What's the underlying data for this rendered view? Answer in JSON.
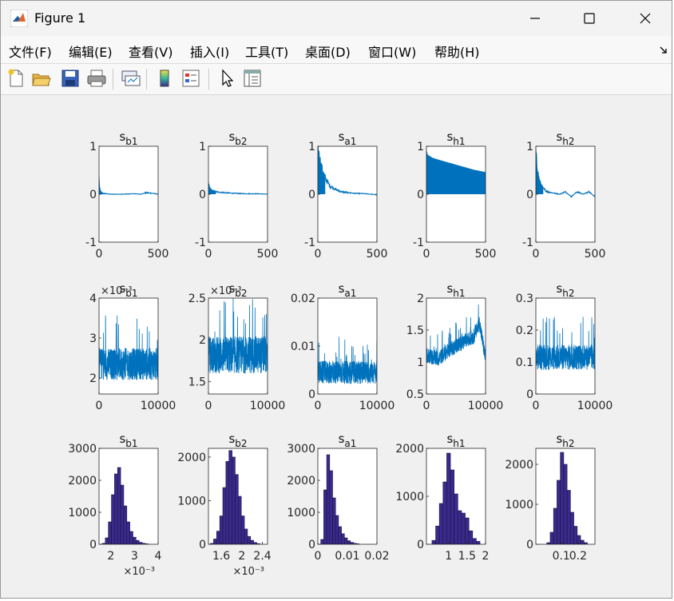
{
  "window": {
    "title": "Figure 1"
  },
  "menu": [
    "文件(F)",
    "编辑(E)",
    "查看(V)",
    "插入(I)",
    "工具(T)",
    "桌面(D)",
    "窗口(W)",
    "帮助(H)"
  ],
  "toolbar": [
    "new-figure",
    "open-file",
    "save",
    "print",
    "link-data",
    "colorbar",
    "legend",
    "pointer",
    "property-inspector"
  ],
  "colors": {
    "trace": "#0072bd",
    "hist_face": "#3a2a8c",
    "hist_edge": "#1a1240"
  },
  "chart_data": [
    {
      "type": "line",
      "title": "s",
      "subscript": "b1",
      "xlim": [
        0,
        500
      ],
      "ylim": [
        -1,
        1
      ],
      "xticks": [
        "0",
        "500"
      ],
      "yticks": [
        "-1",
        "0",
        "1"
      ],
      "shape": "decay",
      "x": [
        0,
        5,
        15,
        30,
        60,
        100,
        200,
        300,
        350,
        400,
        450,
        500
      ],
      "y": [
        0.35,
        0.12,
        0.05,
        0.02,
        0.01,
        0.0,
        0.0,
        0.01,
        0.0,
        0.03,
        0.02,
        0.0
      ]
    },
    {
      "type": "line",
      "title": "s",
      "subscript": "b2",
      "xlim": [
        0,
        500
      ],
      "ylim": [
        -1,
        1
      ],
      "xticks": [
        "0",
        "500"
      ],
      "yticks": [
        "-1",
        "0",
        "1"
      ],
      "shape": "decay",
      "x": [
        0,
        10,
        30,
        60,
        100,
        200,
        300,
        400,
        500
      ],
      "y": [
        0.22,
        0.12,
        0.07,
        0.05,
        0.04,
        0.02,
        0.01,
        0.01,
        0.0
      ]
    },
    {
      "type": "line",
      "title": "s",
      "subscript": "a1",
      "xlim": [
        0,
        500
      ],
      "ylim": [
        -1,
        1
      ],
      "xticks": [
        "0",
        "500"
      ],
      "yticks": [
        "-1",
        "0",
        "1"
      ],
      "shape": "decay",
      "x": [
        0,
        10,
        30,
        60,
        100,
        150,
        200,
        300,
        400,
        500
      ],
      "y": [
        0.98,
        0.8,
        0.55,
        0.35,
        0.18,
        0.1,
        0.05,
        0.02,
        0.01,
        -0.01
      ]
    },
    {
      "type": "line",
      "title": "s",
      "subscript": "h1",
      "xlim": [
        0,
        500
      ],
      "ylim": [
        -1,
        1
      ],
      "xticks": [
        "0",
        "500"
      ],
      "yticks": [
        "-1",
        "0",
        "1"
      ],
      "shape": "envelope",
      "x": [
        0,
        10,
        50,
        100,
        200,
        300,
        400,
        500
      ],
      "y": [
        0.9,
        0.82,
        0.76,
        0.72,
        0.65,
        0.58,
        0.51,
        0.46
      ]
    },
    {
      "type": "line",
      "title": "s",
      "subscript": "h2",
      "xlim": [
        0,
        500
      ],
      "ylim": [
        -1,
        1
      ],
      "xticks": [
        "0",
        "500"
      ],
      "yticks": [
        "-1",
        "0",
        "1"
      ],
      "shape": "decay",
      "x": [
        0,
        10,
        30,
        60,
        100,
        200,
        250,
        300,
        350,
        400,
        450,
        500
      ],
      "y": [
        0.85,
        0.55,
        0.28,
        0.12,
        0.05,
        0.0,
        0.05,
        -0.05,
        0.05,
        0.0,
        0.05,
        -0.05
      ]
    },
    {
      "type": "line",
      "title": "s",
      "subscript": "b1",
      "xlim": [
        0,
        10000
      ],
      "ylim": [
        1.6,
        4
      ],
      "xticks": [
        "0",
        "10000"
      ],
      "yticks": [
        "2",
        "3",
        "4"
      ],
      "exponent": "×10⁻³",
      "shape": "noise",
      "center": 2.35,
      "spread": 0.5,
      "x": [
        0,
        10000
      ],
      "y": [
        1.7,
        3.9
      ]
    },
    {
      "type": "line",
      "title": "s",
      "subscript": "b2",
      "xlim": [
        0,
        10000
      ],
      "ylim": [
        1.35,
        2.5
      ],
      "xticks": [
        "0",
        "10000"
      ],
      "yticks": [
        "1.5",
        "2",
        "2.5"
      ],
      "exponent": "×10⁻³",
      "shape": "noise",
      "center": 1.82,
      "spread": 0.28,
      "x": [
        0,
        10000
      ],
      "y": [
        1.38,
        2.45
      ]
    },
    {
      "type": "line",
      "title": "s",
      "subscript": "a1",
      "xlim": [
        0,
        10000
      ],
      "ylim": [
        0,
        0.02
      ],
      "xticks": [
        "0",
        "10000"
      ],
      "yticks": [
        "0",
        "0.01",
        "0.02"
      ],
      "shape": "noise",
      "center": 0.0045,
      "spread": 0.003,
      "x": [
        0,
        10000
      ],
      "y": [
        0.002,
        0.0145
      ]
    },
    {
      "type": "line",
      "title": "s",
      "subscript": "h1",
      "xlim": [
        0,
        10000
      ],
      "ylim": [
        0.5,
        2
      ],
      "xticks": [
        "0",
        "10000"
      ],
      "yticks": [
        "0.5",
        "1",
        "1.5",
        "2"
      ],
      "shape": "walk",
      "center": 1.1,
      "spread": 0.15,
      "x": [
        0,
        2000,
        4000,
        6000,
        8000,
        9000,
        10000
      ],
      "y": [
        1.1,
        1.05,
        1.2,
        1.3,
        1.4,
        1.6,
        1.05
      ]
    },
    {
      "type": "line",
      "title": "s",
      "subscript": "h2",
      "xlim": [
        0,
        10000
      ],
      "ylim": [
        0,
        0.3
      ],
      "xticks": [
        "0",
        "10000"
      ],
      "yticks": [
        "0",
        "0.1",
        "0.2",
        "0.3"
      ],
      "shape": "noise",
      "center": 0.115,
      "spread": 0.05,
      "x": [
        0,
        10000
      ],
      "y": [
        0.05,
        0.3
      ]
    },
    {
      "type": "bar",
      "title": "s",
      "subscript": "b1",
      "xlim": [
        1.5,
        4
      ],
      "ylim": [
        0,
        3000
      ],
      "xticks": [
        "2",
        "3",
        "4"
      ],
      "yticks": [
        "0",
        "1000",
        "2000",
        "3000"
      ],
      "exponent": "×10⁻³",
      "x": [
        1.7,
        1.83,
        1.96,
        2.09,
        2.22,
        2.35,
        2.48,
        2.61,
        2.74,
        2.87,
        3.0,
        3.13,
        3.26,
        3.39,
        3.52
      ],
      "values": [
        30,
        200,
        700,
        1550,
        2200,
        2400,
        1850,
        1200,
        700,
        400,
        220,
        120,
        60,
        30,
        15
      ],
      "bin_width": 0.13
    },
    {
      "type": "bar",
      "title": "s",
      "subscript": "b2",
      "xlim": [
        1.35,
        2.5
      ],
      "ylim": [
        0,
        2200
      ],
      "xticks": [
        "1.6",
        "2",
        "2.4"
      ],
      "yticks": [
        "0",
        "1000",
        "2000"
      ],
      "exponent": "×10⁻³",
      "x": [
        1.42,
        1.48,
        1.54,
        1.6,
        1.66,
        1.72,
        1.78,
        1.84,
        1.9,
        1.96,
        2.02,
        2.08,
        2.14,
        2.2,
        2.26,
        2.32
      ],
      "values": [
        20,
        120,
        300,
        650,
        1300,
        1900,
        2150,
        2000,
        1600,
        1100,
        650,
        350,
        180,
        90,
        40,
        15
      ],
      "bin_width": 0.06
    },
    {
      "type": "bar",
      "title": "s",
      "subscript": "a1",
      "xlim": [
        0,
        0.02
      ],
      "ylim": [
        0,
        3000
      ],
      "xticks": [
        "0",
        "0.01",
        "0.02"
      ],
      "yticks": [
        "0",
        "1000",
        "2000",
        "3000"
      ],
      "x": [
        0.0015,
        0.0025,
        0.0035,
        0.0045,
        0.0055,
        0.0065,
        0.0075,
        0.0085,
        0.0095,
        0.0105,
        0.0115,
        0.0125,
        0.0135
      ],
      "values": [
        150,
        1700,
        2800,
        2300,
        1450,
        900,
        550,
        330,
        200,
        110,
        60,
        30,
        15
      ],
      "bin_width": 0.001
    },
    {
      "type": "bar",
      "title": "s",
      "subscript": "h1",
      "xlim": [
        0.4,
        2
      ],
      "ylim": [
        0,
        2000
      ],
      "xticks": [
        "1",
        "1.5",
        "2"
      ],
      "yticks": [
        "0",
        "1000",
        "2000"
      ],
      "x": [
        0.6,
        0.7,
        0.8,
        0.9,
        1.0,
        1.1,
        1.2,
        1.3,
        1.4,
        1.5,
        1.6,
        1.7,
        1.8
      ],
      "values": [
        80,
        380,
        850,
        1300,
        1900,
        1550,
        1050,
        700,
        650,
        550,
        280,
        120,
        60
      ],
      "bin_width": 0.1
    },
    {
      "type": "bar",
      "title": "s",
      "subscript": "h2",
      "xlim": [
        -0.05,
        0.3
      ],
      "ylim": [
        0,
        2400
      ],
      "xticks": [
        "0.1",
        "0.2"
      ],
      "yticks": [
        "0",
        "1000",
        "2000"
      ],
      "x": [
        0.025,
        0.045,
        0.065,
        0.085,
        0.105,
        0.125,
        0.145,
        0.165,
        0.185,
        0.205,
        0.225,
        0.245
      ],
      "values": [
        40,
        300,
        900,
        1600,
        2300,
        2000,
        1350,
        800,
        450,
        220,
        100,
        40
      ],
      "bin_width": 0.02
    }
  ]
}
